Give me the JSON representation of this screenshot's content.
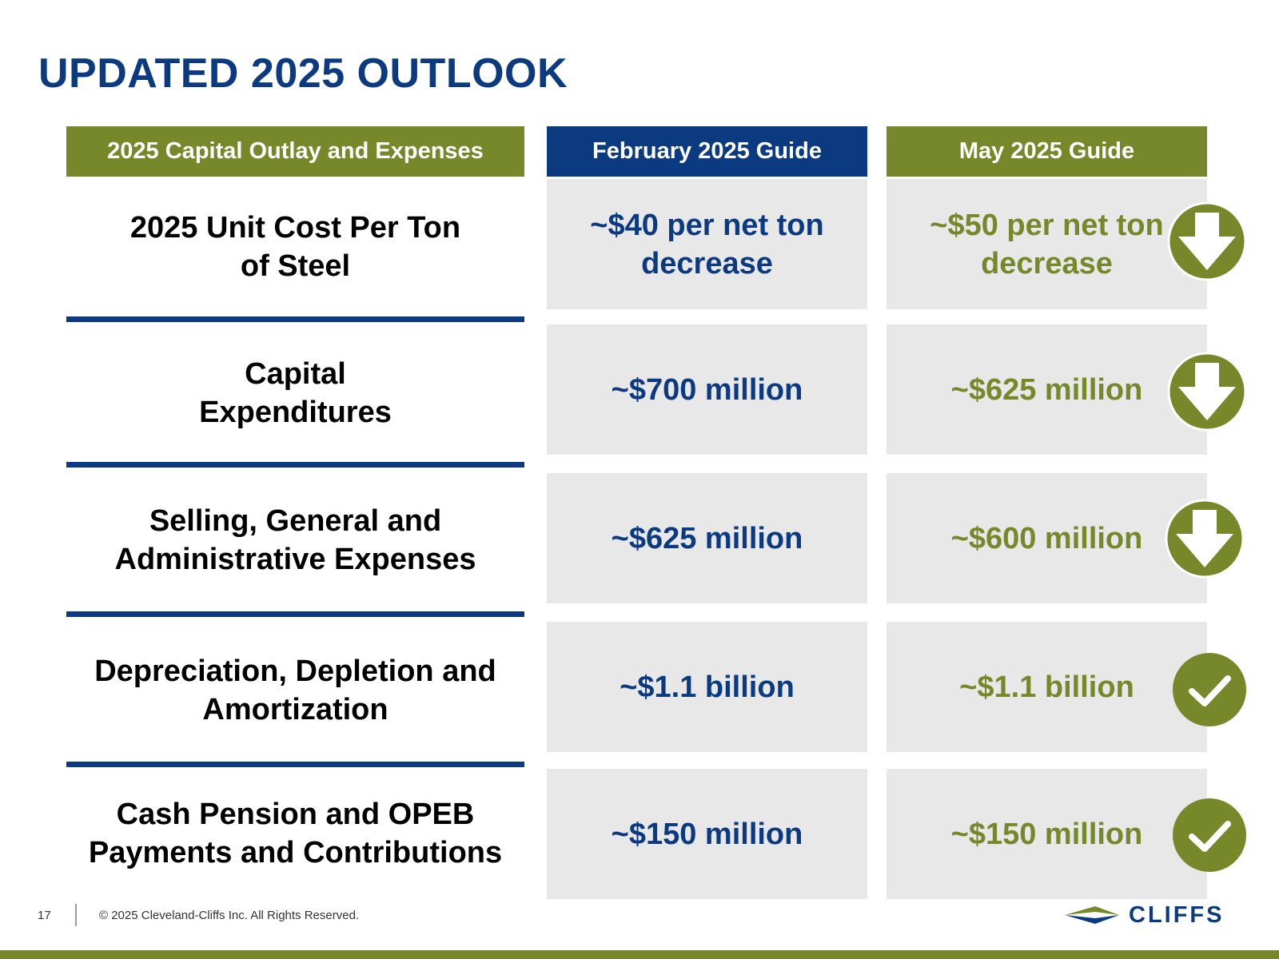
{
  "title": "UPDATED 2025 OUTLOOK",
  "headers": {
    "category": "2025 Capital Outlay and Expenses",
    "february": "February 2025 Guide",
    "may": "May 2025 Guide"
  },
  "rows": [
    {
      "label": "2025 Unit Cost Per Ton\nof Steel",
      "february": "~$40 per net ton\ndecrease",
      "may": "~$50 per net ton\ndecrease",
      "status": "down-arrow-icon"
    },
    {
      "label": "Capital\nExpenditures",
      "february": "~$700 million",
      "may": "~$625 million",
      "status": "down-arrow-icon"
    },
    {
      "label": "Selling, General and\nAdministrative Expenses",
      "february": "~$625 million",
      "may": "~$600 million",
      "status": "down-arrow-icon"
    },
    {
      "label": "Depreciation, Depletion and\nAmortization",
      "february": "~$1.1 billion",
      "may": "~$1.1 billion",
      "status": "checkmark-icon"
    },
    {
      "label": "Cash Pension and OPEB\nPayments and Contributions",
      "february": "~$150 million",
      "may": "~$150 million",
      "status": "checkmark-icon"
    }
  ],
  "footer": {
    "page_number": "17",
    "copyright": "© 2025 Cleveland-Cliffs Inc. All Rights Reserved.",
    "logo_text": "CLIFFS"
  },
  "colors": {
    "navy": "#0b3a80",
    "olive": "#76882a",
    "cell_bg": "#e8e8e8"
  }
}
